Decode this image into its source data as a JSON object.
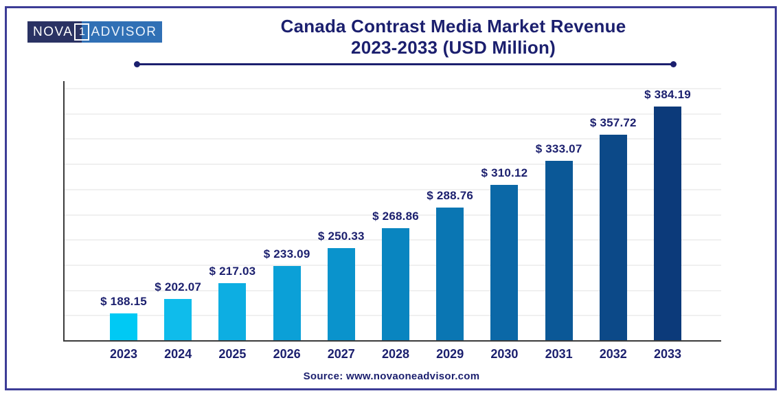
{
  "logo": {
    "text_left": "NOVA",
    "box_digit": "1",
    "text_right": "ADVISOR"
  },
  "title": {
    "line1": "Canada Contrast Media Market Revenue",
    "line2": "2023-2033 (USD Million)"
  },
  "source": "Source: www.novaoneadvisor.com",
  "colors": {
    "accent_navy": "#1B1F6E",
    "frame_border": "#3C3C96",
    "axis": "#3A3A3A",
    "gridline": "#F0F0F0",
    "logo_dark": "#2A3263",
    "logo_light": "#3070B5"
  },
  "chart_data": {
    "type": "bar",
    "title": "Canada Contrast Media Market Revenue 2023-2033 (USD Million)",
    "xlabel": "",
    "ylabel": "",
    "categories": [
      "2023",
      "2024",
      "2025",
      "2026",
      "2027",
      "2028",
      "2029",
      "2030",
      "2031",
      "2032",
      "2033"
    ],
    "values": [
      188.15,
      202.07,
      217.03,
      233.09,
      250.33,
      268.86,
      288.76,
      310.12,
      333.07,
      357.72,
      384.19
    ],
    "value_labels": [
      "$ 188.15",
      "$ 202.07",
      "$ 217.03",
      "$ 233.09",
      "$ 250.33",
      "$ 268.86",
      "$ 288.76",
      "$ 310.12",
      "$ 333.07",
      "$ 357.72",
      "$ 384.19"
    ],
    "bar_colors": [
      "#00C9F4",
      "#0FBCEB",
      "#0DAEE2",
      "#0BA0D7",
      "#0A93CC",
      "#0985C0",
      "#0A76B3",
      "#0B68A7",
      "#0B5897",
      "#0C4988",
      "#0C3A7A"
    ],
    "ylim": [
      163,
      401
    ],
    "y_axis_truncated": true,
    "grid": "horizontal",
    "legend": false,
    "data_labels_position": "above-bars"
  }
}
